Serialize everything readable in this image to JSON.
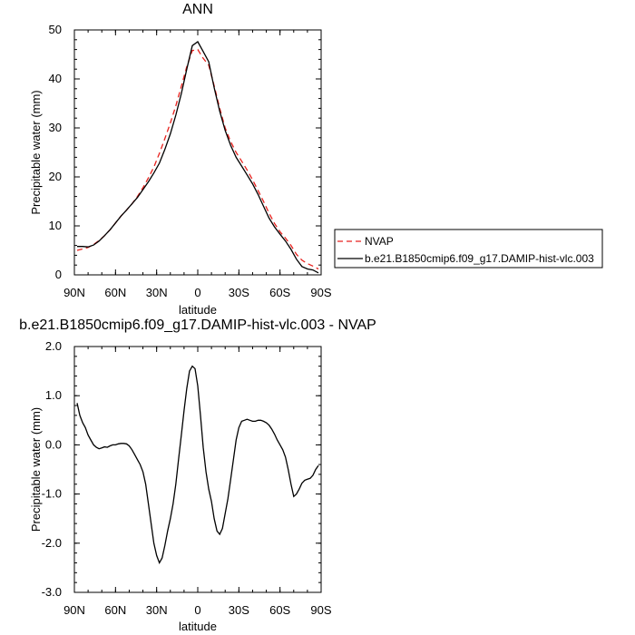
{
  "chart_data": [
    {
      "type": "line",
      "title": "ANN",
      "xlabel": "latitude",
      "ylabel": "Precipitable water (mm)",
      "xlim": [
        90,
        -90
      ],
      "ylim": [
        0,
        50
      ],
      "xticks": [
        90,
        60,
        30,
        0,
        -30,
        -60,
        -90
      ],
      "xtick_labels": [
        "90N",
        "60N",
        "30N",
        "0",
        "30S",
        "60S",
        "90S"
      ],
      "yticks": [
        0,
        10,
        20,
        30,
        40,
        50
      ],
      "ytick_labels": [
        "0",
        "10",
        "20",
        "30",
        "40",
        "50"
      ],
      "legend_position": "right",
      "series": [
        {
          "name": "NVAP",
          "color": "#e8211d",
          "dash": "dashed",
          "x": [
            88,
            84,
            80,
            76,
            72,
            68,
            64,
            60,
            56,
            52,
            48,
            44,
            40,
            36,
            32,
            28,
            24,
            20,
            16,
            12,
            8,
            4,
            0,
            -4,
            -8,
            -12,
            -16,
            -20,
            -24,
            -28,
            -32,
            -36,
            -40,
            -44,
            -48,
            -52,
            -56,
            -60,
            -64,
            -68,
            -72,
            -76,
            -80,
            -84,
            -88
          ],
          "y": [
            5.0,
            5.3,
            5.6,
            6.2,
            7.0,
            8.0,
            9.2,
            10.6,
            12.0,
            13.2,
            14.5,
            16.0,
            17.8,
            19.8,
            22.0,
            24.8,
            27.8,
            31.0,
            34.5,
            38.5,
            42.5,
            45.8,
            46.0,
            44.2,
            42.8,
            38.6,
            34.0,
            30.0,
            27.2,
            25.0,
            23.2,
            21.4,
            19.4,
            17.2,
            15.0,
            12.6,
            10.5,
            8.8,
            7.5,
            6.0,
            4.2,
            3.0,
            2.3,
            1.8,
            1.2
          ]
        },
        {
          "name": "b.e21.B1850cmip6.f09_g17.DAMIP-hist-vlc.003",
          "color": "#000000",
          "dash": "solid",
          "x": [
            88,
            84,
            80,
            76,
            72,
            68,
            64,
            60,
            56,
            52,
            48,
            44,
            40,
            36,
            32,
            28,
            24,
            20,
            16,
            12,
            8,
            4,
            0,
            -4,
            -8,
            -12,
            -16,
            -20,
            -24,
            -28,
            -32,
            -36,
            -40,
            -44,
            -48,
            -52,
            -56,
            -60,
            -64,
            -68,
            -72,
            -76,
            -80,
            -84,
            -88
          ],
          "y": [
            5.8,
            5.8,
            5.7,
            6.1,
            6.9,
            8.0,
            9.2,
            10.6,
            12.0,
            13.2,
            14.5,
            15.8,
            17.4,
            19.0,
            20.8,
            22.8,
            25.6,
            28.8,
            32.6,
            37.0,
            42.0,
            46.8,
            47.6,
            45.6,
            43.5,
            38.2,
            33.4,
            29.5,
            26.4,
            24.0,
            22.2,
            20.4,
            18.6,
            16.4,
            14.0,
            11.6,
            9.8,
            8.3,
            6.9,
            5.2,
            3.2,
            1.7,
            1.2,
            1.0,
            0.4
          ]
        }
      ]
    },
    {
      "type": "line",
      "title": "b.e21.B1850cmip6.f09_g17.DAMIP-hist-vlc.003 - NVAP",
      "xlabel": "latitude",
      "ylabel": "Precipitable water (mm)",
      "xlim": [
        90,
        -90
      ],
      "ylim": [
        -3.0,
        2.0
      ],
      "xticks": [
        90,
        60,
        30,
        0,
        -30,
        -60,
        -90
      ],
      "xtick_labels": [
        "90N",
        "60N",
        "30N",
        "0",
        "30S",
        "60S",
        "90S"
      ],
      "yticks": [
        2.0,
        1.0,
        0.0,
        -1.0,
        -2.0,
        -3.0
      ],
      "ytick_labels": [
        "2.0",
        "1.0",
        "0.0",
        "-1.0",
        "-2.0",
        "-3.0"
      ],
      "series": [
        {
          "color": "#000000",
          "dash": "solid",
          "x": [
            88,
            86,
            84,
            82,
            80,
            78,
            76,
            74,
            72,
            70,
            68,
            66,
            64,
            62,
            60,
            58,
            56,
            54,
            52,
            50,
            48,
            46,
            44,
            42,
            40,
            38,
            36,
            34,
            32,
            30,
            28,
            26,
            24,
            22,
            20,
            18,
            16,
            14,
            12,
            10,
            8,
            6,
            4,
            2,
            0,
            -2,
            -4,
            -6,
            -8,
            -10,
            -12,
            -14,
            -16,
            -18,
            -20,
            -22,
            -24,
            -26,
            -28,
            -30,
            -32,
            -34,
            -36,
            -38,
            -40,
            -42,
            -44,
            -46,
            -48,
            -50,
            -52,
            -54,
            -56,
            -58,
            -60,
            -62,
            -64,
            -66,
            -68,
            -70,
            -72,
            -74,
            -76,
            -78,
            -80,
            -82,
            -84,
            -86,
            -88
          ],
          "y": [
            0.85,
            0.6,
            0.45,
            0.35,
            0.2,
            0.1,
            0.0,
            -0.05,
            -0.08,
            -0.06,
            -0.04,
            -0.05,
            -0.02,
            0.0,
            0.0,
            0.02,
            0.03,
            0.03,
            0.02,
            -0.02,
            -0.1,
            -0.2,
            -0.3,
            -0.4,
            -0.55,
            -0.8,
            -1.2,
            -1.6,
            -2.0,
            -2.25,
            -2.4,
            -2.3,
            -2.05,
            -1.75,
            -1.5,
            -1.2,
            -0.8,
            -0.3,
            0.2,
            0.7,
            1.15,
            1.5,
            1.6,
            1.55,
            1.2,
            0.6,
            -0.05,
            -0.55,
            -0.9,
            -1.15,
            -1.5,
            -1.75,
            -1.82,
            -1.7,
            -1.4,
            -1.1,
            -0.7,
            -0.3,
            0.1,
            0.35,
            0.48,
            0.5,
            0.52,
            0.5,
            0.48,
            0.48,
            0.5,
            0.5,
            0.48,
            0.45,
            0.4,
            0.32,
            0.22,
            0.1,
            0.0,
            -0.1,
            -0.25,
            -0.5,
            -0.8,
            -1.05,
            -1.0,
            -0.9,
            -0.78,
            -0.72,
            -0.7,
            -0.68,
            -0.62,
            -0.5,
            -0.42
          ]
        }
      ]
    }
  ]
}
